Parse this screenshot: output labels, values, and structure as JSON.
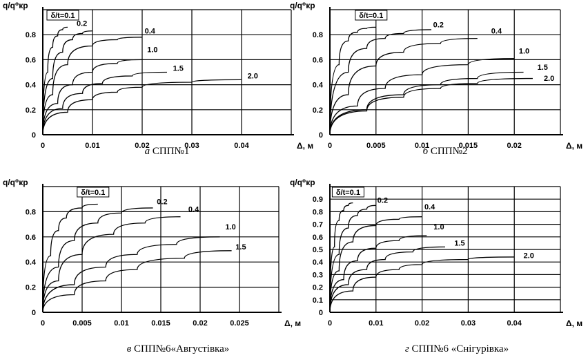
{
  "chart_data": [
    {
      "type": "line",
      "caption_prefix": "а",
      "caption": "СПП№1",
      "ylabel": "q/q⁰кр",
      "xlabel": "Δ, м",
      "xlim": [
        0,
        0.05
      ],
      "ylim": [
        0,
        1.0
      ],
      "xticks": [
        0,
        0.01,
        0.02,
        0.03,
        0.04
      ],
      "yticks": [
        0,
        0.2,
        0.4,
        0.6,
        0.8
      ],
      "xtick_labels": [
        "0",
        "0.01",
        "0.02",
        "0.03",
        "0.04"
      ],
      "ytick_labels": [
        "0",
        "0.2",
        "0.4",
        "0.6",
        "0.8"
      ],
      "legend_box_label": "δ/t=0.1",
      "series": [
        {
          "name": "0.1",
          "x": [
            0,
            0.001,
            0.002,
            0.003,
            0.004,
            0.005
          ],
          "y": [
            0,
            0.5,
            0.7,
            0.79,
            0.84,
            0.86
          ]
        },
        {
          "name": "0.2",
          "x": [
            0,
            0.002,
            0.004,
            0.006,
            0.008,
            0.01
          ],
          "y": [
            0,
            0.45,
            0.66,
            0.76,
            0.81,
            0.83
          ]
        },
        {
          "name": "0.4",
          "x": [
            0,
            0.002,
            0.005,
            0.01,
            0.015,
            0.02
          ],
          "y": [
            0,
            0.32,
            0.56,
            0.71,
            0.76,
            0.78
          ]
        },
        {
          "name": "1.0",
          "x": [
            0,
            0.003,
            0.006,
            0.01,
            0.015,
            0.02
          ],
          "y": [
            0,
            0.25,
            0.4,
            0.5,
            0.57,
            0.6
          ]
        },
        {
          "name": "1.5",
          "x": [
            0,
            0.004,
            0.008,
            0.012,
            0.018,
            0.025
          ],
          "y": [
            0,
            0.21,
            0.33,
            0.41,
            0.47,
            0.5
          ]
        },
        {
          "name": "2.0",
          "x": [
            0,
            0.005,
            0.01,
            0.015,
            0.02,
            0.03,
            0.04
          ],
          "y": [
            0,
            0.18,
            0.28,
            0.34,
            0.38,
            0.42,
            0.44
          ]
        }
      ],
      "label_at": [
        {
          "text": "0.2",
          "x": 0.0068,
          "y": 0.87
        },
        {
          "text": "0.4",
          "x": 0.0205,
          "y": 0.81
        },
        {
          "text": "1.0",
          "x": 0.021,
          "y": 0.66
        },
        {
          "text": "1.5",
          "x": 0.0262,
          "y": 0.51
        },
        {
          "text": "2.0",
          "x": 0.0412,
          "y": 0.45
        }
      ]
    },
    {
      "type": "line",
      "caption_prefix": "б",
      "caption": "СПП№2",
      "ylabel": "q/q⁰кр",
      "xlabel": "Δ, м",
      "xlim": [
        0,
        0.025
      ],
      "ylim": [
        0,
        1.0
      ],
      "xticks": [
        0,
        0.005,
        0.01,
        0.015,
        0.02
      ],
      "yticks": [
        0,
        0.2,
        0.4,
        0.6,
        0.8
      ],
      "xtick_labels": [
        "0",
        "0.005",
        "0.01",
        "0.015",
        "0.02"
      ],
      "ytick_labels": [
        "0",
        "0.2",
        "0.4",
        "0.6",
        "0.8"
      ],
      "legend_box_label": "δ/t=0.1",
      "series": [
        {
          "name": "0.1",
          "x": [
            0,
            0.001,
            0.002,
            0.003,
            0.004,
            0.005
          ],
          "y": [
            0,
            0.56,
            0.75,
            0.82,
            0.85,
            0.86
          ]
        },
        {
          "name": "0.2",
          "x": [
            0,
            0.002,
            0.004,
            0.006,
            0.008,
            0.011
          ],
          "y": [
            0,
            0.5,
            0.69,
            0.77,
            0.81,
            0.84
          ]
        },
        {
          "name": "0.4",
          "x": [
            0,
            0.002,
            0.005,
            0.008,
            0.012,
            0.016
          ],
          "y": [
            0,
            0.32,
            0.55,
            0.66,
            0.73,
            0.77
          ]
        },
        {
          "name": "1.0",
          "x": [
            0,
            0.003,
            0.006,
            0.01,
            0.015,
            0.02
          ],
          "y": [
            0,
            0.23,
            0.37,
            0.48,
            0.56,
            0.61
          ]
        },
        {
          "name": "1.5",
          "x": [
            0,
            0.004,
            0.008,
            0.012,
            0.016,
            0.021
          ],
          "y": [
            0,
            0.2,
            0.32,
            0.4,
            0.45,
            0.5
          ]
        },
        {
          "name": "2.0",
          "x": [
            0,
            0.004,
            0.008,
            0.012,
            0.016,
            0.022
          ],
          "y": [
            0,
            0.19,
            0.3,
            0.37,
            0.41,
            0.45
          ]
        }
      ],
      "label_at": [
        {
          "text": "0.2",
          "x": 0.0112,
          "y": 0.86
        },
        {
          "text": "0.4",
          "x": 0.0175,
          "y": 0.81
        },
        {
          "text": "1.0",
          "x": 0.0205,
          "y": 0.65
        },
        {
          "text": "1.5",
          "x": 0.0225,
          "y": 0.52
        },
        {
          "text": "2.0",
          "x": 0.0232,
          "y": 0.43
        }
      ]
    },
    {
      "type": "line",
      "caption_prefix": "в",
      "caption": "СПП№6«Августівка»",
      "ylabel": "q/q⁰кр",
      "xlabel": "Δ, м",
      "xlim": [
        0,
        0.03
      ],
      "ylim": [
        0,
        1.0
      ],
      "xticks": [
        0,
        0.005,
        0.01,
        0.015,
        0.02,
        0.025
      ],
      "yticks": [
        0,
        0.2,
        0.4,
        0.6,
        0.8
      ],
      "xtick_labels": [
        "0",
        "0.005",
        "0.01",
        "0.015",
        "0.02",
        "0.025"
      ],
      "ytick_labels": [
        "0",
        "0.2",
        "0.4",
        "0.6",
        "0.8"
      ],
      "legend_box_label": "δ/t=0.1",
      "series": [
        {
          "name": "0.1",
          "x": [
            0,
            0.001,
            0.002,
            0.003,
            0.005,
            0.007
          ],
          "y": [
            0,
            0.45,
            0.65,
            0.75,
            0.83,
            0.86
          ]
        },
        {
          "name": "0.2",
          "x": [
            0,
            0.002,
            0.004,
            0.007,
            0.01,
            0.014
          ],
          "y": [
            0,
            0.36,
            0.57,
            0.71,
            0.79,
            0.83
          ]
        },
        {
          "name": "0.4",
          "x": [
            0,
            0.002,
            0.005,
            0.009,
            0.013,
            0.0175
          ],
          "y": [
            0,
            0.25,
            0.46,
            0.62,
            0.71,
            0.76
          ]
        },
        {
          "name": "1.0",
          "x": [
            0,
            0.004,
            0.008,
            0.012,
            0.017,
            0.0225
          ],
          "y": [
            0,
            0.22,
            0.36,
            0.46,
            0.54,
            0.6
          ]
        },
        {
          "name": "1.5",
          "x": [
            0,
            0.004,
            0.008,
            0.012,
            0.018,
            0.024
          ],
          "y": [
            0,
            0.14,
            0.25,
            0.34,
            0.43,
            0.49
          ]
        }
      ],
      "label_at": [
        {
          "text": "0.2",
          "x": 0.0145,
          "y": 0.86
        },
        {
          "text": "0.4",
          "x": 0.0185,
          "y": 0.8
        },
        {
          "text": "1.0",
          "x": 0.0232,
          "y": 0.66
        },
        {
          "text": "1.5",
          "x": 0.0245,
          "y": 0.5
        }
      ]
    },
    {
      "type": "line",
      "caption_prefix": "г",
      "caption": "СПП№6 «Снігурівка»",
      "ylabel": "q/q⁰кр",
      "xlabel": "Δ, м",
      "xlim": [
        0,
        0.05
      ],
      "ylim": [
        0,
        1.0
      ],
      "xticks": [
        0,
        0.01,
        0.02,
        0.03,
        0.04
      ],
      "yticks": [
        0,
        0.1,
        0.2,
        0.3,
        0.4,
        0.5,
        0.6,
        0.7,
        0.8,
        0.9
      ],
      "xtick_labels": [
        "0",
        "0.01",
        "0.02",
        "0.03",
        "0.04"
      ],
      "ytick_labels": [
        "0",
        "0.1",
        "0.2",
        "0.3",
        "0.4",
        "0.5",
        "0.6",
        "0.7",
        "0.8",
        "0.9"
      ],
      "legend_box_label": "δ/t=0.1",
      "series": [
        {
          "name": "0.1",
          "x": [
            0,
            0.001,
            0.002,
            0.003,
            0.004,
            0.005
          ],
          "y": [
            0,
            0.52,
            0.73,
            0.81,
            0.85,
            0.87
          ]
        },
        {
          "name": "0.2",
          "x": [
            0,
            0.002,
            0.004,
            0.006,
            0.008,
            0.01
          ],
          "y": [
            0,
            0.46,
            0.67,
            0.77,
            0.82,
            0.85
          ]
        },
        {
          "name": "0.4",
          "x": [
            0,
            0.002,
            0.005,
            0.01,
            0.015,
            0.02
          ],
          "y": [
            0,
            0.33,
            0.56,
            0.69,
            0.74,
            0.76
          ]
        },
        {
          "name": "1.0",
          "x": [
            0,
            0.003,
            0.006,
            0.01,
            0.015,
            0.021
          ],
          "y": [
            0,
            0.26,
            0.41,
            0.51,
            0.57,
            0.61
          ]
        },
        {
          "name": "1.5",
          "x": [
            0,
            0.004,
            0.008,
            0.012,
            0.018,
            0.025
          ],
          "y": [
            0,
            0.22,
            0.34,
            0.42,
            0.48,
            0.52
          ]
        },
        {
          "name": "2.0",
          "x": [
            0,
            0.005,
            0.01,
            0.015,
            0.02,
            0.03,
            0.04
          ],
          "y": [
            0,
            0.17,
            0.28,
            0.34,
            0.38,
            0.42,
            0.44
          ]
        }
      ],
      "label_at": [
        {
          "text": "0.2",
          "x": 0.0103,
          "y": 0.87
        },
        {
          "text": "0.4",
          "x": 0.0205,
          "y": 0.82
        },
        {
          "text": "1.0",
          "x": 0.0225,
          "y": 0.66
        },
        {
          "text": "1.5",
          "x": 0.027,
          "y": 0.53
        },
        {
          "text": "2.0",
          "x": 0.042,
          "y": 0.43
        }
      ]
    }
  ]
}
